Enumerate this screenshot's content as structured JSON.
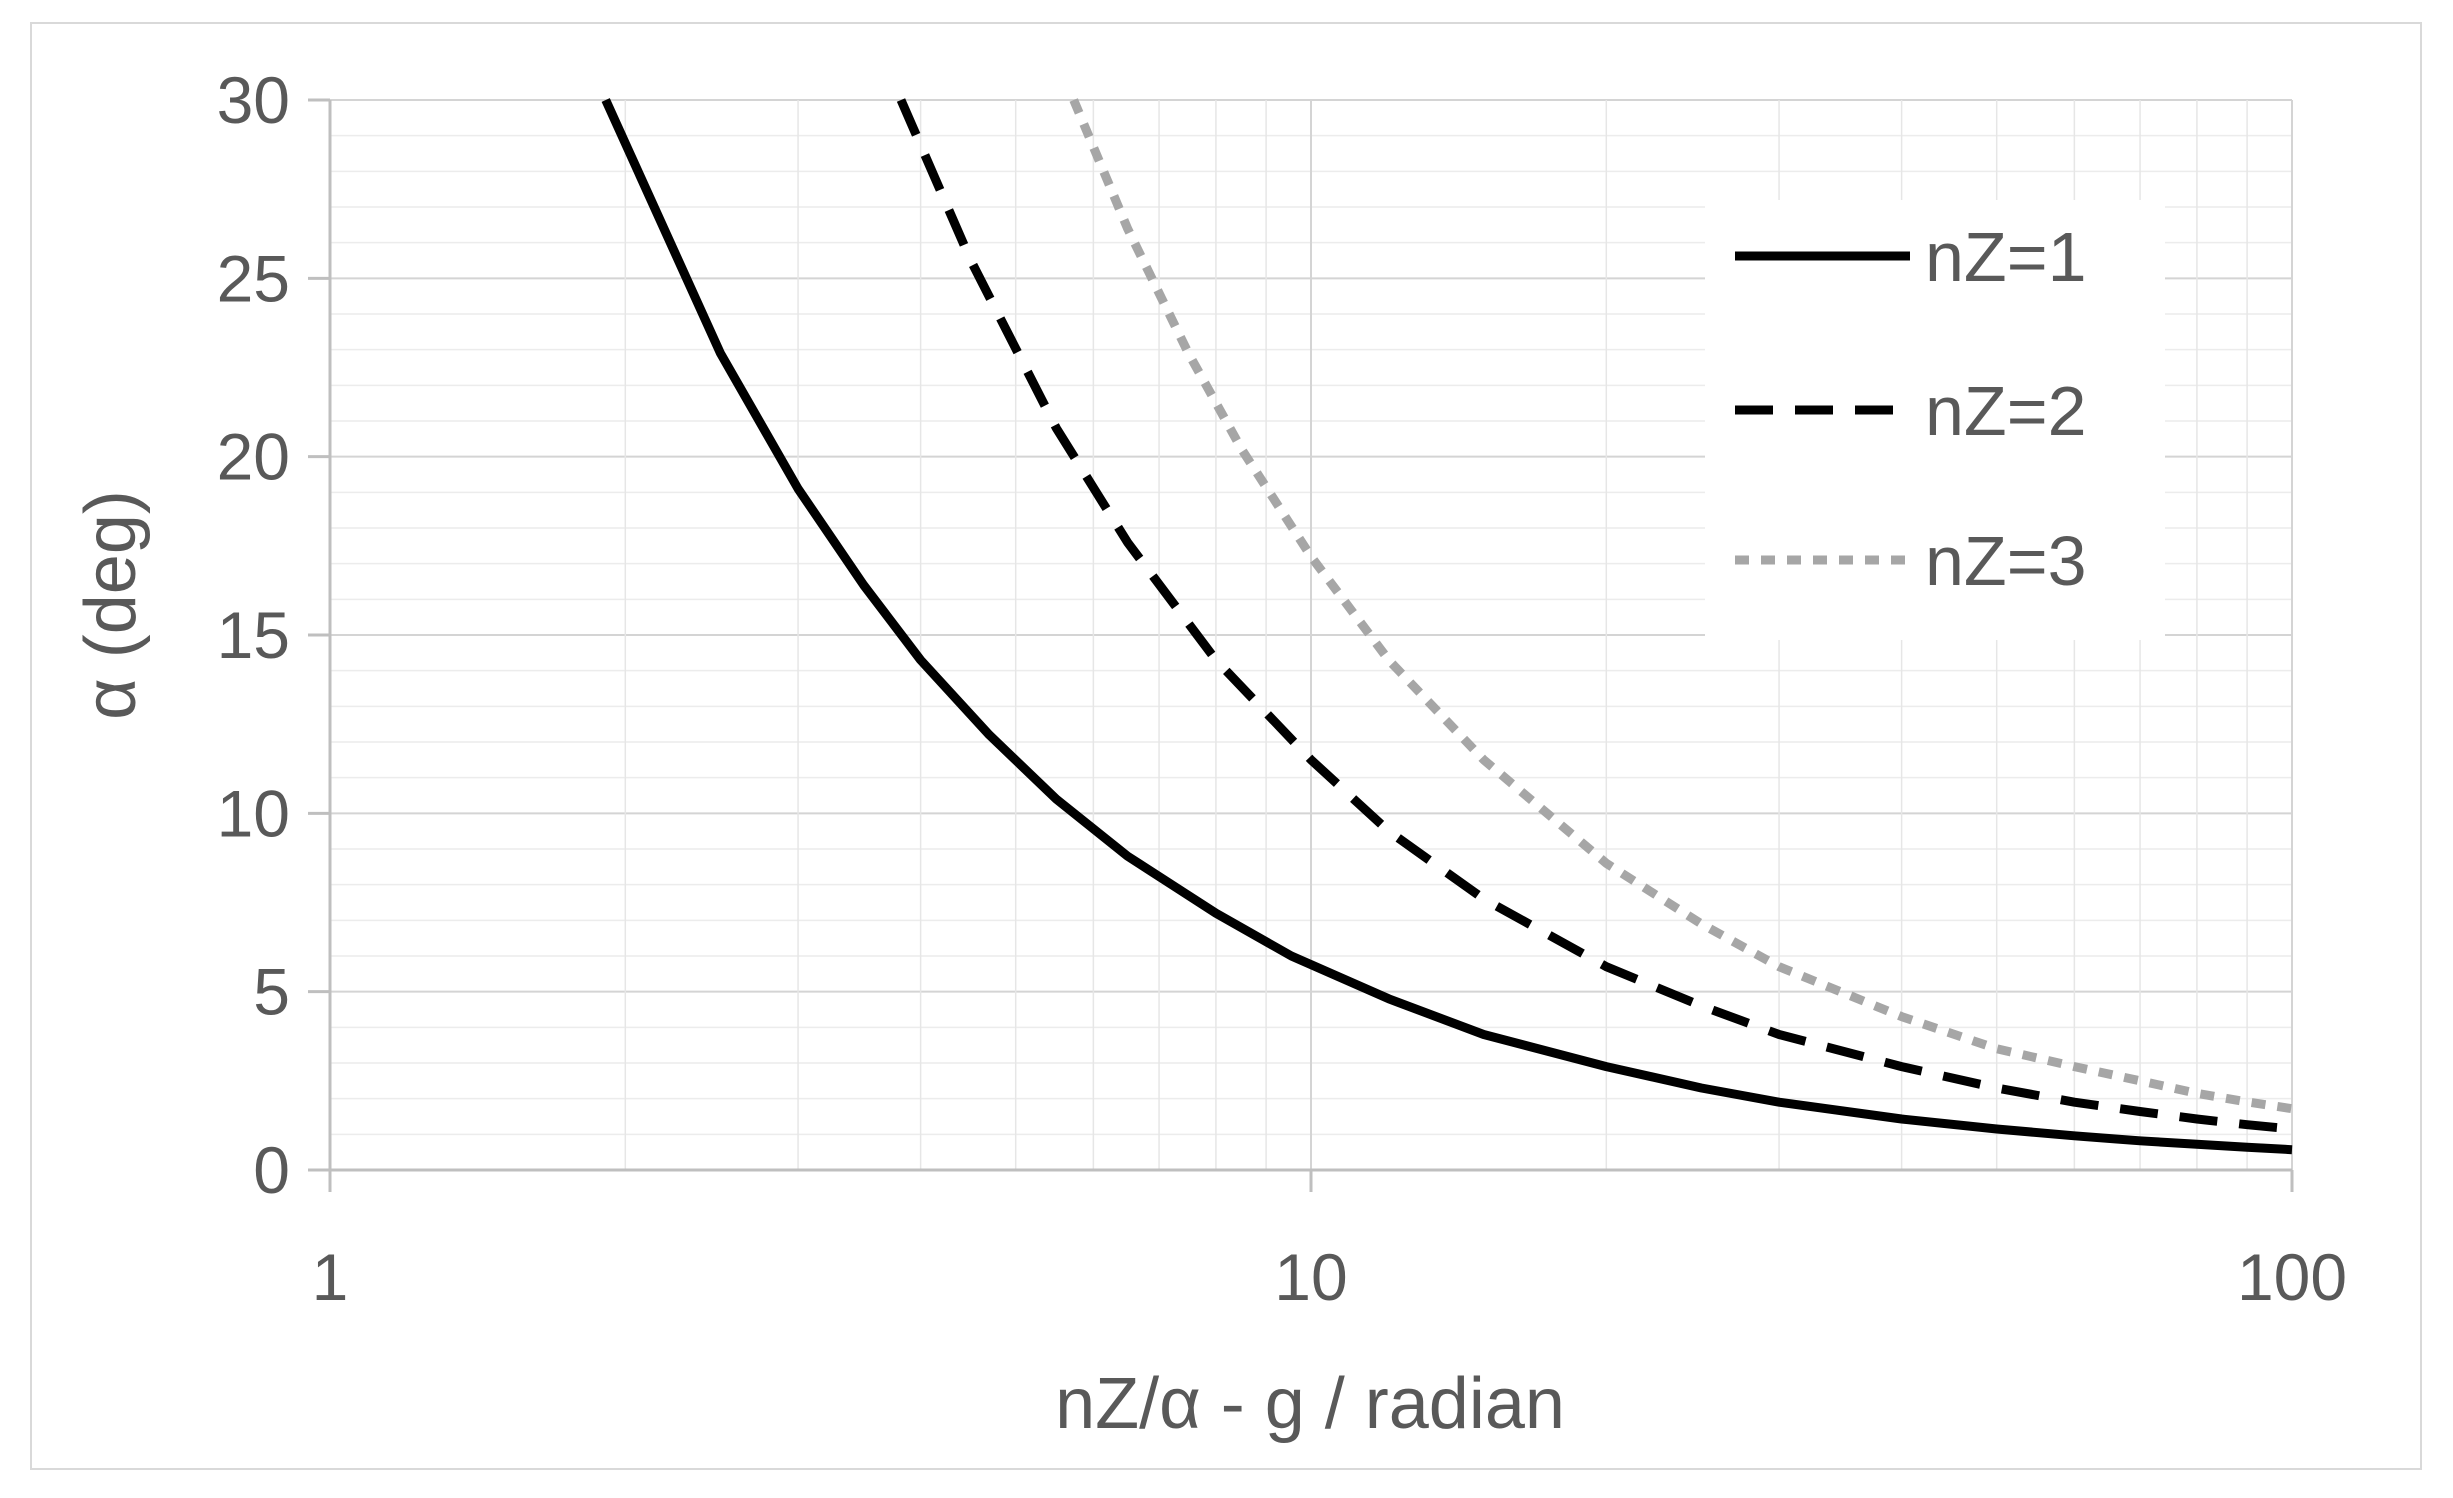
{
  "chart_data": {
    "type": "line",
    "title": "",
    "xlabel": "nZ/α - g / radian",
    "ylabel": "α (deg)",
    "x_scale": "log",
    "xlim": [
      1,
      100
    ],
    "ylim": [
      0,
      30
    ],
    "x_ticks": [
      "1",
      "10",
      "100"
    ],
    "y_ticks": [
      "0",
      "5",
      "10",
      "15",
      "20",
      "25",
      "30"
    ],
    "grid": true,
    "legend_position": "top-right",
    "series": [
      {
        "name": "nZ=1",
        "color": "#000000",
        "style": "solid",
        "x": [
          1.91,
          2.5,
          3,
          3.5,
          4,
          4.7,
          5.5,
          6.5,
          8,
          9.55,
          12,
          15,
          20,
          25,
          30,
          40,
          50,
          60,
          70,
          80,
          90,
          100
        ],
        "y": [
          30,
          22.9,
          19.1,
          16.4,
          14.3,
          12.2,
          10.4,
          8.8,
          7.2,
          6.0,
          4.8,
          3.8,
          2.9,
          2.3,
          1.9,
          1.43,
          1.15,
          0.96,
          0.82,
          0.72,
          0.64,
          0.57
        ]
      },
      {
        "name": "nZ=2",
        "color": "#000000",
        "style": "dashed",
        "x": [
          3.82,
          4.5,
          5.5,
          6.5,
          8,
          10,
          12,
          15,
          20,
          25,
          30,
          40,
          50,
          60,
          70,
          80,
          90,
          100
        ],
        "y": [
          30,
          25.5,
          20.8,
          17.6,
          14.3,
          11.5,
          9.5,
          7.6,
          5.7,
          4.6,
          3.8,
          2.9,
          2.3,
          1.9,
          1.64,
          1.43,
          1.27,
          1.15
        ]
      },
      {
        "name": "nZ=3",
        "color": "#a6a6a6",
        "style": "dotted",
        "x": [
          5.73,
          6.5,
          7.5,
          8.5,
          10,
          12,
          15,
          20,
          25,
          30,
          40,
          50,
          60,
          70,
          80,
          90,
          100
        ],
        "y": [
          30,
          26.4,
          22.9,
          20.2,
          17.2,
          14.3,
          11.5,
          8.6,
          6.9,
          5.7,
          4.3,
          3.4,
          2.9,
          2.5,
          2.15,
          1.91,
          1.72
        ]
      }
    ]
  }
}
